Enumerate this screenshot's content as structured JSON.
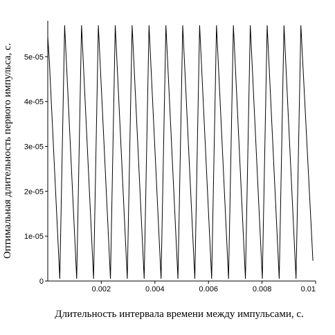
{
  "chart_data": {
    "type": "line",
    "title": "",
    "xlabel": "Длительность интервала времени между импульсами, с.",
    "ylabel": "Оптимальная длительность первого импульса, с.",
    "xlim": [
      0,
      0.01
    ],
    "ylim": [
      0,
      5.8e-05
    ],
    "x_ticks": [
      0.002,
      0.004,
      0.006,
      0.008,
      0.01
    ],
    "x_tick_labels": [
      "0.002",
      "0.004",
      "0.006",
      "0.008",
      "0.01"
    ],
    "y_ticks": [
      0,
      1e-05,
      2e-05,
      3e-05,
      4e-05,
      5e-05
    ],
    "y_tick_labels": [
      "0",
      "1e-05",
      "2e-05",
      "3e-05",
      "4e-05",
      "5e-05"
    ],
    "grid": false,
    "legend": "none",
    "series": [
      {
        "x": [
          0.0,
          6e-05,
          0.00045,
          0.00063,
          0.00108,
          0.00126,
          0.00171,
          0.00189,
          0.00234,
          0.00252,
          0.00297,
          0.00315,
          0.0036,
          0.00378,
          0.00423,
          0.00441,
          0.00486,
          0.00504,
          0.00549,
          0.00567,
          0.00612,
          0.0063,
          0.00675,
          0.00693,
          0.00738,
          0.00756,
          0.00801,
          0.00819,
          0.00864,
          0.00882,
          0.00927,
          0.00945,
          0.0099
        ],
        "y": [
          5.45e-05,
          4.9e-05,
          5e-07,
          5.7e-05,
          5e-07,
          5.7e-05,
          5e-07,
          5.7e-05,
          5e-07,
          5.7e-05,
          5e-07,
          5.7e-05,
          5e-07,
          5.7e-05,
          5e-07,
          5.7e-05,
          5e-07,
          5.7e-05,
          5e-07,
          5.7e-05,
          5e-07,
          5.7e-05,
          5e-07,
          5.7e-05,
          5e-07,
          5.7e-05,
          5e-07,
          5.7e-05,
          5e-07,
          5.7e-05,
          5e-07,
          5.7e-05,
          4.5e-06
        ]
      }
    ]
  }
}
